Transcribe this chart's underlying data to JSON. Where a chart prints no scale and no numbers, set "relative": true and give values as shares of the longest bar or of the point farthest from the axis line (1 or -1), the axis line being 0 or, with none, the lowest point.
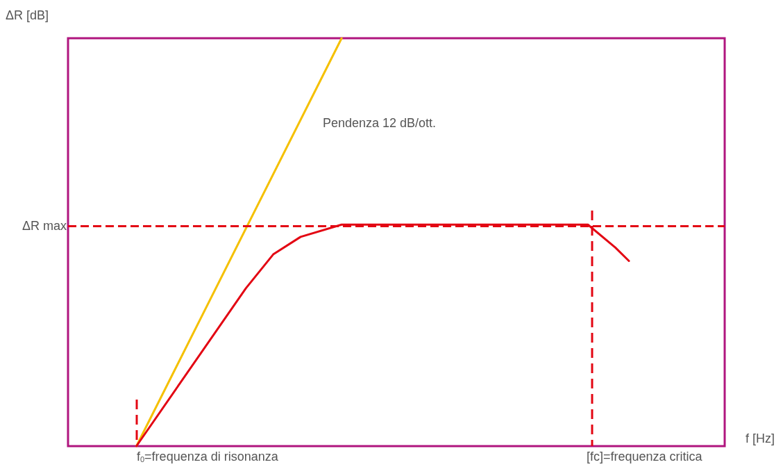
{
  "chart_data": {
    "type": "line",
    "relative": true,
    "ylabel": "ΔR [dB]",
    "xlabel": "f [Hz]",
    "categories": [
      null,
      null,
      null,
      null,
      null,
      null,
      null,
      null,
      null,
      null,
      null,
      null,
      null,
      null,
      null,
      null,
      null,
      null,
      null,
      null,
      null,
      null,
      null,
      null,
      null,
      null,
      null,
      null,
      null,
      null,
      null,
      null,
      null,
      null,
      null,
      null,
      null,
      null,
      null,
      null,
      null,
      null,
      null,
      null,
      null,
      null,
      null,
      null,
      null
    ],
    "series": [
      {
        "color": "#f5c000",
        "values": [
          null,
          null,
          null,
          null,
          null,
          0,
          null,
          null,
          null,
          null,
          null,
          null,
          null,
          null,
          null,
          null,
          null,
          null,
          null,
          null,
          1,
          null,
          null,
          null,
          null,
          null,
          null,
          null,
          null,
          null,
          null,
          null,
          null,
          null,
          null,
          null,
          null,
          null,
          null,
          null,
          null,
          null,
          null,
          null,
          null,
          null,
          null,
          null,
          null
        ]
      },
      {
        "color": "#e30613",
        "values": [
          null,
          null,
          null,
          null,
          null,
          0,
          null,
          null,
          null,
          null,
          null,
          null,
          null,
          0.387,
          null,
          0.47,
          null,
          0.513,
          null,
          null,
          0.543,
          null,
          null,
          null,
          null,
          null,
          null,
          null,
          null,
          null,
          null,
          null,
          null,
          null,
          null,
          null,
          null,
          null,
          0.543,
          null,
          0.487,
          0.454,
          null,
          null,
          null,
          null,
          null,
          null,
          null
        ]
      }
    ],
    "ref_lines": [
      {
        "axis": "y",
        "value": 0.543,
        "label": "ΔR max",
        "color": "#e30613",
        "line_style": "dashed"
      }
    ],
    "annotations": [
      "Pendenza 12 dB/ott.",
      "f$_{0}$=frequenza di risonanza",
      "[fc]=frequenza critica"
    ],
    "grid": false
  }
}
